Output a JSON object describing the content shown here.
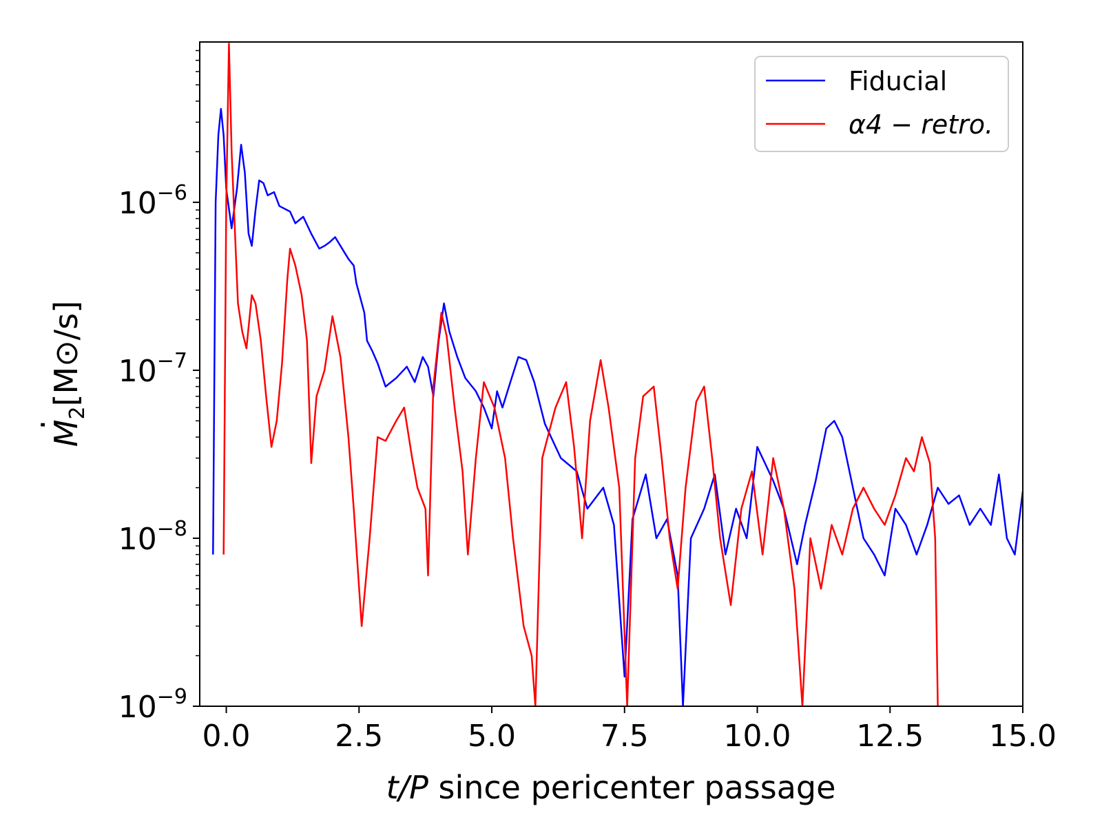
{
  "chart_data": {
    "type": "line",
    "yscale": "log",
    "xlabel": {
      "italic": "t/P",
      "rest": " since pericenter passage"
    },
    "ylabel": {
      "base": "M",
      "sub": "2",
      "unit": "[M⊙/s]"
    },
    "xlim": [
      -0.5,
      15.0
    ],
    "ylim": [
      1e-09,
      9e-06
    ],
    "xticks": [
      0.0,
      2.5,
      5.0,
      7.5,
      10.0,
      12.5,
      15.0
    ],
    "xtick_labels": [
      "0.0",
      "2.5",
      "5.0",
      "7.5",
      "10.0",
      "12.5",
      "15.0"
    ],
    "yticks": [
      {
        "value": 1e-06,
        "base": "10",
        "exp": "−6"
      },
      {
        "value": 1e-07,
        "base": "10",
        "exp": "−7"
      },
      {
        "value": 1e-08,
        "base": "10",
        "exp": "−8"
      },
      {
        "value": 1e-09,
        "base": "10",
        "exp": "−9"
      }
    ],
    "legend_position": "top-right",
    "series": [
      {
        "name": "Fiducial",
        "color": "#0000ff",
        "points": [
          [
            -0.25,
            8e-09
          ],
          [
            -0.2,
            1e-06
          ],
          [
            -0.15,
            2.5e-06
          ],
          [
            -0.1,
            3.6e-06
          ],
          [
            -0.05,
            2.5e-06
          ],
          [
            0.0,
            1.2e-06
          ],
          [
            0.1,
            7e-07
          ],
          [
            0.2,
            1.2e-06
          ],
          [
            0.28,
            2.2e-06
          ],
          [
            0.35,
            1.5e-06
          ],
          [
            0.42,
            6.5e-07
          ],
          [
            0.48,
            5.5e-07
          ],
          [
            0.55,
            9e-07
          ],
          [
            0.62,
            1.35e-06
          ],
          [
            0.7,
            1.3e-06
          ],
          [
            0.78,
            1.1e-06
          ],
          [
            0.9,
            1.15e-06
          ],
          [
            1.0,
            9.5e-07
          ],
          [
            1.2,
            8.8e-07
          ],
          [
            1.3,
            7.5e-07
          ],
          [
            1.45,
            8.2e-07
          ],
          [
            1.6,
            6.5e-07
          ],
          [
            1.75,
            5.3e-07
          ],
          [
            1.85,
            5.5e-07
          ],
          [
            1.95,
            5.8e-07
          ],
          [
            2.05,
            6.2e-07
          ],
          [
            2.15,
            5.5e-07
          ],
          [
            2.3,
            4.6e-07
          ],
          [
            2.4,
            4.2e-07
          ],
          [
            2.45,
            3.3e-07
          ],
          [
            2.6,
            2.2e-07
          ],
          [
            2.65,
            1.5e-07
          ],
          [
            2.75,
            1.3e-07
          ],
          [
            2.85,
            1.1e-07
          ],
          [
            3.0,
            8e-08
          ],
          [
            3.2,
            9e-08
          ],
          [
            3.4,
            1.05e-07
          ],
          [
            3.55,
            8.5e-08
          ],
          [
            3.7,
            1.2e-07
          ],
          [
            3.8,
            1.05e-07
          ],
          [
            3.9,
            7e-08
          ],
          [
            4.0,
            1.5e-07
          ],
          [
            4.1,
            2.5e-07
          ],
          [
            4.2,
            1.7e-07
          ],
          [
            4.35,
            1.2e-07
          ],
          [
            4.5,
            9e-08
          ],
          [
            4.7,
            7.5e-08
          ],
          [
            4.85,
            6e-08
          ],
          [
            5.0,
            4.5e-08
          ],
          [
            5.1,
            7.5e-08
          ],
          [
            5.2,
            6e-08
          ],
          [
            5.35,
            8.5e-08
          ],
          [
            5.5,
            1.2e-07
          ],
          [
            5.65,
            1.15e-07
          ],
          [
            5.8,
            8.5e-08
          ],
          [
            6.0,
            4.8e-08
          ],
          [
            6.3,
            3e-08
          ],
          [
            6.6,
            2.5e-08
          ],
          [
            6.8,
            1.5e-08
          ],
          [
            7.1,
            2e-08
          ],
          [
            7.3,
            1.2e-08
          ],
          [
            7.5,
            1.5e-09
          ],
          [
            7.65,
            1.3e-08
          ],
          [
            7.9,
            2.4e-08
          ],
          [
            8.1,
            1e-08
          ],
          [
            8.3,
            1.3e-08
          ],
          [
            8.5,
            6e-09
          ],
          [
            8.6,
            1e-09
          ],
          [
            8.75,
            1e-08
          ],
          [
            9.0,
            1.5e-08
          ],
          [
            9.2,
            2.4e-08
          ],
          [
            9.4,
            8e-09
          ],
          [
            9.6,
            1.5e-08
          ],
          [
            9.8,
            1e-08
          ],
          [
            10.0,
            3.5e-08
          ],
          [
            10.3,
            2.2e-08
          ],
          [
            10.5,
            1.5e-08
          ],
          [
            10.75,
            7e-09
          ],
          [
            10.9,
            1.2e-08
          ],
          [
            11.1,
            2.2e-08
          ],
          [
            11.3,
            4.5e-08
          ],
          [
            11.45,
            5e-08
          ],
          [
            11.6,
            4e-08
          ],
          [
            11.8,
            2e-08
          ],
          [
            12.0,
            1e-08
          ],
          [
            12.2,
            8e-09
          ],
          [
            12.4,
            6e-09
          ],
          [
            12.6,
            1.5e-08
          ],
          [
            12.8,
            1.2e-08
          ],
          [
            13.0,
            8e-09
          ],
          [
            13.2,
            1.2e-08
          ],
          [
            13.4,
            2e-08
          ],
          [
            13.6,
            1.6e-08
          ],
          [
            13.8,
            1.8e-08
          ],
          [
            14.0,
            1.2e-08
          ],
          [
            14.2,
            1.5e-08
          ],
          [
            14.4,
            1.2e-08
          ],
          [
            14.55,
            2.4e-08
          ],
          [
            14.7,
            1e-08
          ],
          [
            14.85,
            8e-09
          ],
          [
            15.0,
            1.9e-08
          ]
        ]
      },
      {
        "name": "α4 − retro.",
        "color": "#ff0000",
        "points": [
          [
            -0.05,
            8e-09
          ],
          [
            0.0,
            1e-06
          ],
          [
            0.05,
            8.8e-06
          ],
          [
            0.1,
            2e-06
          ],
          [
            0.18,
            5e-07
          ],
          [
            0.22,
            2.5e-07
          ],
          [
            0.3,
            1.7e-07
          ],
          [
            0.38,
            1.35e-07
          ],
          [
            0.48,
            2.8e-07
          ],
          [
            0.55,
            2.5e-07
          ],
          [
            0.65,
            1.5e-07
          ],
          [
            0.75,
            7e-08
          ],
          [
            0.85,
            3.5e-08
          ],
          [
            0.95,
            5e-08
          ],
          [
            1.05,
            1.1e-07
          ],
          [
            1.15,
            3.5e-07
          ],
          [
            1.2,
            5.3e-07
          ],
          [
            1.3,
            4.2e-07
          ],
          [
            1.42,
            2.8e-07
          ],
          [
            1.52,
            1.5e-07
          ],
          [
            1.6,
            2.8e-08
          ],
          [
            1.7,
            7e-08
          ],
          [
            1.85,
            1e-07
          ],
          [
            2.0,
            2.1e-07
          ],
          [
            2.15,
            1.2e-07
          ],
          [
            2.3,
            4e-08
          ],
          [
            2.4,
            1.5e-08
          ],
          [
            2.55,
            3e-09
          ],
          [
            2.7,
            1e-08
          ],
          [
            2.85,
            4e-08
          ],
          [
            3.0,
            3.8e-08
          ],
          [
            3.2,
            5e-08
          ],
          [
            3.35,
            6e-08
          ],
          [
            3.5,
            3e-08
          ],
          [
            3.6,
            2e-08
          ],
          [
            3.75,
            1.5e-08
          ],
          [
            3.8,
            6e-09
          ],
          [
            3.9,
            8e-08
          ],
          [
            4.05,
            2.2e-07
          ],
          [
            4.15,
            1.6e-07
          ],
          [
            4.3,
            6e-08
          ],
          [
            4.45,
            2.5e-08
          ],
          [
            4.55,
            8e-09
          ],
          [
            4.7,
            3e-08
          ],
          [
            4.85,
            8.5e-08
          ],
          [
            5.05,
            6e-08
          ],
          [
            5.25,
            3e-08
          ],
          [
            5.4,
            1e-08
          ],
          [
            5.6,
            3e-09
          ],
          [
            5.75,
            2e-09
          ],
          [
            5.82,
            1e-09
          ],
          [
            5.95,
            3e-08
          ],
          [
            6.2,
            6e-08
          ],
          [
            6.4,
            8.5e-08
          ],
          [
            6.55,
            3.5e-08
          ],
          [
            6.7,
            1e-08
          ],
          [
            6.85,
            5e-08
          ],
          [
            7.05,
            1.15e-07
          ],
          [
            7.2,
            6e-08
          ],
          [
            7.4,
            2e-08
          ],
          [
            7.55,
            1e-09
          ],
          [
            7.7,
            3e-08
          ],
          [
            7.85,
            7e-08
          ],
          [
            8.05,
            8e-08
          ],
          [
            8.2,
            3e-08
          ],
          [
            8.35,
            1e-08
          ],
          [
            8.5,
            5e-09
          ],
          [
            8.65,
            2e-08
          ],
          [
            8.85,
            6.5e-08
          ],
          [
            9.0,
            8e-08
          ],
          [
            9.15,
            3e-08
          ],
          [
            9.3,
            1e-08
          ],
          [
            9.5,
            4e-09
          ],
          [
            9.7,
            1.5e-08
          ],
          [
            9.9,
            2.5e-08
          ],
          [
            10.1,
            8e-09
          ],
          [
            10.3,
            3e-08
          ],
          [
            10.5,
            1.5e-08
          ],
          [
            10.7,
            5e-09
          ],
          [
            10.85,
            1e-09
          ],
          [
            11.0,
            1e-08
          ],
          [
            11.2,
            5e-09
          ],
          [
            11.4,
            1.2e-08
          ],
          [
            11.6,
            8e-09
          ],
          [
            11.8,
            1.5e-08
          ],
          [
            12.0,
            2e-08
          ],
          [
            12.2,
            1.5e-08
          ],
          [
            12.4,
            1.2e-08
          ],
          [
            12.6,
            1.8e-08
          ],
          [
            12.8,
            3e-08
          ],
          [
            12.95,
            2.5e-08
          ],
          [
            13.1,
            4e-08
          ],
          [
            13.25,
            2.8e-08
          ],
          [
            13.35,
            1e-08
          ],
          [
            13.4,
            1e-09
          ]
        ]
      }
    ]
  }
}
